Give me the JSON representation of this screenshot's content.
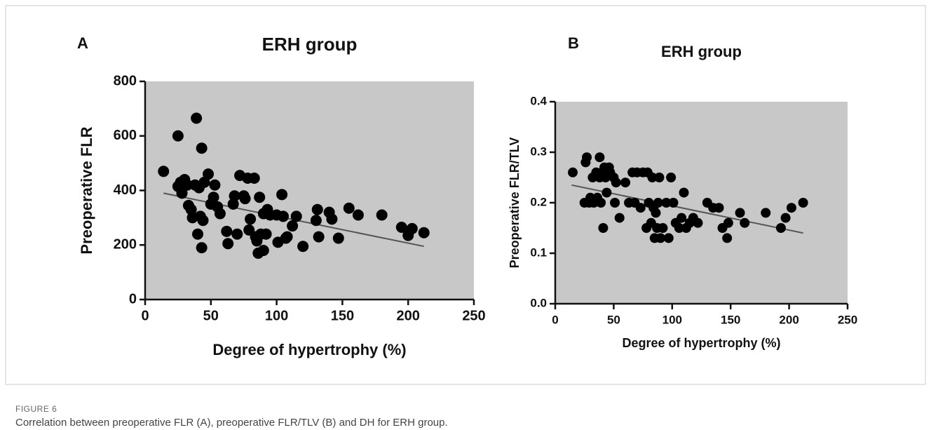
{
  "figure_label": "FIGURE 6",
  "caption": "Correlation between preoperative FLR (A), preoperative FLR/TLV (B) and DH for ERH group.",
  "chart_data": [
    {
      "type": "scatter",
      "panel": "A",
      "title": "ERH group",
      "xlabel": "Degree of hypertrophy (%)",
      "ylabel": "Preoperative FLR",
      "color": "#000000",
      "background": "#c8c8c8",
      "xlim": [
        0,
        250
      ],
      "xticks": [
        0,
        50,
        100,
        150,
        200,
        250
      ],
      "ylim": [
        0,
        800
      ],
      "yticks": [
        0,
        200,
        400,
        600,
        800
      ],
      "x": [
        14,
        25,
        25,
        27,
        28,
        30,
        32,
        33,
        35,
        36,
        38,
        39,
        40,
        41,
        42,
        43,
        43,
        44,
        45,
        48,
        50,
        52,
        53,
        55,
        57,
        62,
        63,
        67,
        68,
        70,
        72,
        75,
        76,
        78,
        79,
        80,
        83,
        84,
        85,
        86,
        87,
        88,
        90,
        90,
        92,
        93,
        95,
        100,
        101,
        104,
        105,
        107,
        108,
        112,
        115,
        120,
        130,
        131,
        132,
        140,
        142,
        147,
        155,
        162,
        180,
        195,
        200,
        203,
        212
      ],
      "y": [
        470,
        600,
        415,
        430,
        390,
        440,
        420,
        345,
        330,
        300,
        420,
        665,
        240,
        410,
        305,
        555,
        190,
        290,
        430,
        460,
        350,
        375,
        420,
        340,
        315,
        250,
        205,
        350,
        380,
        240,
        455,
        380,
        370,
        445,
        255,
        295,
        445,
        230,
        215,
        170,
        375,
        240,
        315,
        180,
        240,
        330,
        310,
        310,
        210,
        385,
        305,
        225,
        230,
        270,
        305,
        195,
        290,
        330,
        230,
        320,
        295,
        225,
        335,
        310,
        310,
        265,
        235,
        260,
        245
      ],
      "trendline": {
        "x": [
          14,
          212
        ],
        "y": [
          390,
          195
        ]
      }
    },
    {
      "type": "scatter",
      "panel": "B",
      "title": "ERH group",
      "xlabel": "Degree of hypertrophy (%)",
      "ylabel": "Preoperative FLR/TLV",
      "color": "#000000",
      "background": "#c8c8c8",
      "xlim": [
        0,
        250
      ],
      "xticks": [
        0,
        50,
        100,
        150,
        200,
        250
      ],
      "ylim": [
        0,
        0.4
      ],
      "yticks": [
        {
          "value": 0,
          "label": "0.0"
        },
        0.1,
        0.2,
        0.3,
        0.4
      ],
      "x": [
        15,
        25,
        26,
        27,
        29,
        30,
        32,
        33,
        35,
        36,
        38,
        38,
        39,
        40,
        41,
        42,
        43,
        44,
        46,
        47,
        50,
        51,
        52,
        55,
        60,
        63,
        66,
        68,
        70,
        73,
        75,
        78,
        79,
        80,
        82,
        83,
        84,
        85,
        86,
        87,
        88,
        89,
        90,
        92,
        95,
        97,
        99,
        101,
        103,
        106,
        108,
        110,
        112,
        115,
        118,
        122,
        130,
        135,
        140,
        143,
        147,
        148,
        158,
        162,
        180,
        193,
        197,
        202,
        212
      ],
      "y": [
        0.26,
        0.2,
        0.28,
        0.29,
        0.2,
        0.21,
        0.25,
        0.2,
        0.26,
        0.21,
        0.29,
        0.25,
        0.2,
        0.26,
        0.15,
        0.27,
        0.25,
        0.22,
        0.27,
        0.26,
        0.25,
        0.2,
        0.24,
        0.17,
        0.24,
        0.2,
        0.26,
        0.2,
        0.26,
        0.19,
        0.26,
        0.15,
        0.26,
        0.2,
        0.16,
        0.25,
        0.19,
        0.13,
        0.18,
        0.15,
        0.2,
        0.25,
        0.13,
        0.15,
        0.2,
        0.13,
        0.25,
        0.2,
        0.16,
        0.15,
        0.17,
        0.22,
        0.15,
        0.16,
        0.17,
        0.16,
        0.2,
        0.19,
        0.19,
        0.15,
        0.13,
        0.16,
        0.18,
        0.16,
        0.18,
        0.15,
        0.17,
        0.19,
        0.2
      ],
      "trendline": {
        "x": [
          14,
          212
        ],
        "y": [
          0.235,
          0.14
        ]
      }
    }
  ]
}
